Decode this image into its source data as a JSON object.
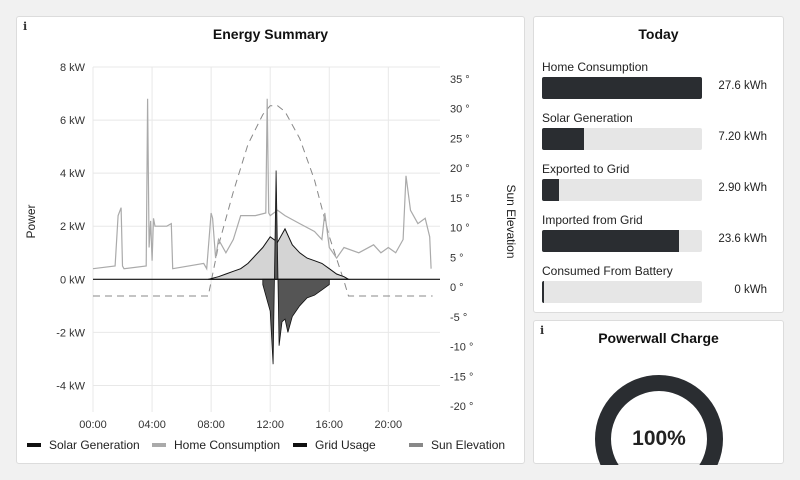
{
  "energy_panel": {
    "info_icon": "info-icon",
    "title": "Energy Summary"
  },
  "chart_data": {
    "type": "line",
    "title": "Energy Summary",
    "ylabel": "Power",
    "y2label": "Sun Elevation",
    "ylim": [
      -5,
      8
    ],
    "y2lim": [
      -21,
      37
    ],
    "yticks": [
      8,
      6,
      4,
      2,
      0,
      -2,
      -4
    ],
    "ytick_labels": [
      "8 kW",
      "6 kW",
      "4 kW",
      "2 kW",
      "0 kW",
      "-2 kW",
      "-4 kW"
    ],
    "y2ticks": [
      35,
      30,
      25,
      20,
      15,
      10,
      5,
      0,
      -5,
      -10,
      -15,
      -20
    ],
    "y2tick_labels": [
      "35 °",
      "30 °",
      "25 °",
      "20 °",
      "15 °",
      "10 °",
      "5 °",
      "0 °",
      "-5 °",
      "-10 °",
      "-15 °",
      "-20 °"
    ],
    "xticks": [
      0,
      4,
      8,
      12,
      16,
      20
    ],
    "xtick_labels": [
      "00:00",
      "04:00",
      "08:00",
      "12:00",
      "16:00",
      "20:00"
    ],
    "xlim": [
      0,
      23.5
    ],
    "grid": true,
    "legend": "bottom",
    "series": [
      {
        "name": "Solar Generation",
        "axis": "left",
        "color": "#111111",
        "x": [
          7.8,
          8.5,
          9.0,
          9.5,
          10.0,
          10.5,
          11.0,
          11.5,
          12.0,
          12.5,
          13.0,
          13.5,
          14.0,
          14.5,
          15.0,
          15.5,
          16.0,
          16.5,
          17.0,
          17.3
        ],
        "y": [
          0,
          0.1,
          0.2,
          0.3,
          0.4,
          0.6,
          0.9,
          1.2,
          1.6,
          1.4,
          1.9,
          1.3,
          1.0,
          0.8,
          0.7,
          0.6,
          0.4,
          0.2,
          0.1,
          0
        ]
      },
      {
        "name": "Home Consumption",
        "axis": "left",
        "color": "#aaaaaa",
        "x": [
          0,
          1.5,
          1.7,
          1.9,
          2.0,
          2.1,
          3.6,
          3.7,
          3.8,
          3.9,
          4.0,
          4.1,
          4.2,
          5.0,
          5.3,
          5.4,
          7.5,
          7.7,
          8.0,
          8.1,
          8.3,
          8.5,
          9.0,
          9.5,
          10.0,
          11.0,
          11.7,
          11.8,
          11.9,
          12.0,
          12.5,
          13.0,
          14.0,
          15.0,
          15.5,
          15.7,
          16.0,
          16.5,
          17.0,
          18.0,
          19.0,
          19.5,
          20.0,
          20.5,
          21.0,
          21.2,
          21.5,
          22.0,
          22.5,
          22.8,
          22.9
        ],
        "y": [
          0.4,
          0.5,
          2.4,
          2.7,
          0.5,
          0.4,
          0.5,
          6.8,
          1.2,
          2.2,
          0.7,
          2.3,
          2.0,
          2.0,
          2.1,
          0.4,
          0.6,
          0.4,
          2.5,
          2.3,
          0.8,
          1.5,
          1.0,
          1.5,
          2.4,
          2.4,
          2.5,
          6.8,
          2.5,
          2.4,
          2.6,
          2.4,
          2.1,
          1.8,
          1.5,
          2.5,
          1.2,
          0.8,
          1.2,
          1.0,
          1.3,
          1.0,
          1.2,
          1.0,
          1.5,
          3.9,
          2.6,
          2.1,
          2.3,
          1.6,
          0.4
        ]
      },
      {
        "name": "Grid Usage",
        "axis": "left",
        "color": "#111111",
        "x": [
          11.5,
          11.8,
          12.0,
          12.2,
          12.4,
          12.6,
          12.8,
          13.0,
          13.2,
          13.5,
          14.0,
          14.5,
          15.0,
          15.5,
          16.0
        ],
        "y": [
          -0.2,
          -0.8,
          -1.2,
          -3.2,
          4.1,
          -2.5,
          -1.6,
          -1.5,
          -2.0,
          -1.4,
          -1.0,
          -0.7,
          -0.6,
          -0.4,
          -0.2
        ]
      },
      {
        "name": "Sun Elevation",
        "axis": "right",
        "color": "#888888",
        "x": [
          0,
          7.8,
          8.5,
          9.5,
          10.5,
          11.5,
          12.0,
          12.5,
          13.0,
          14.0,
          15.0,
          16.0,
          17.0,
          17.3,
          23.0
        ],
        "y": [
          -1.5,
          -1.5,
          7,
          16,
          24,
          29,
          30.5,
          30.5,
          29.5,
          25,
          18,
          8.5,
          1,
          -1.5,
          -1.5
        ]
      }
    ]
  },
  "legend": {
    "items": [
      {
        "label": "Solar Generation",
        "color": "#111111"
      },
      {
        "label": "Home Consumption",
        "color": "#aaaaaa"
      },
      {
        "label": "Grid Usage",
        "color": "#111111"
      },
      {
        "label": "Sun Elevation",
        "color": "#888888"
      }
    ]
  },
  "today_panel": {
    "title": "Today",
    "stats": [
      {
        "label": "Home Consumption",
        "value": "27.6 kWh",
        "fraction": 1.0
      },
      {
        "label": "Solar Generation",
        "value": "7.20 kWh",
        "fraction": 0.26
      },
      {
        "label": "Exported to Grid",
        "value": "2.90 kWh",
        "fraction": 0.105
      },
      {
        "label": "Imported from Grid",
        "value": "23.6 kWh",
        "fraction": 0.855
      },
      {
        "label": "Consumed From Battery",
        "value": "0 kWh",
        "fraction": 0.0
      }
    ]
  },
  "powerwall_panel": {
    "info_icon": "info-icon",
    "title": "Powerwall Charge",
    "value": "100%",
    "fraction": 1.0,
    "color": "#2a2d31"
  }
}
